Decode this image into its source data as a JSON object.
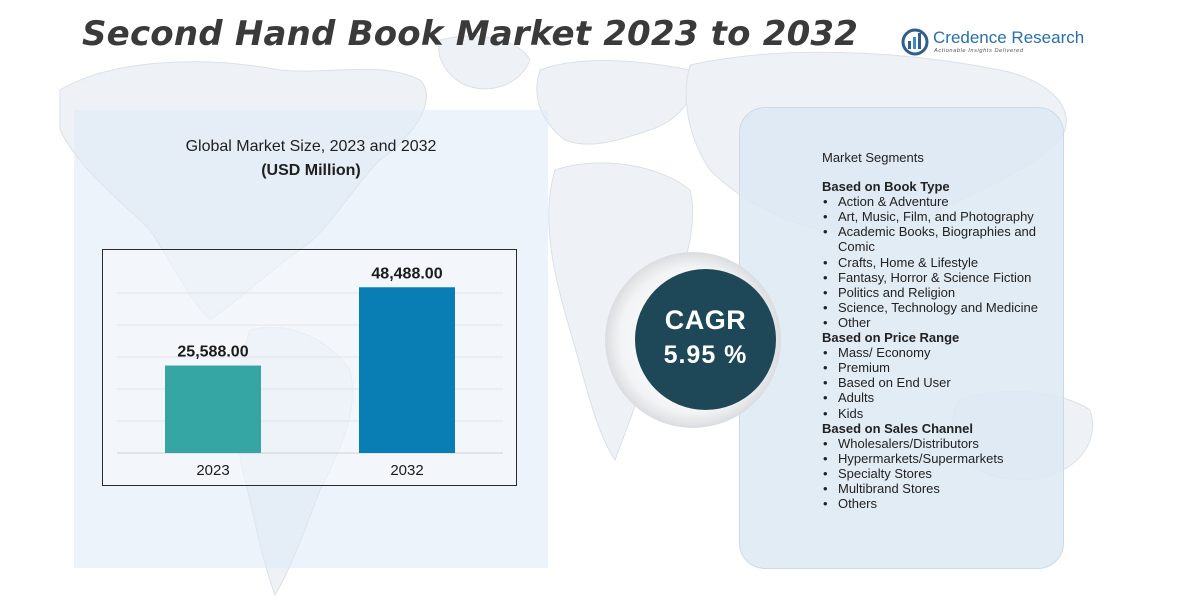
{
  "header": {
    "title": "Second Hand Book Market 2023 to 2032",
    "logo_name": "Credence Research",
    "logo_tagline": "Actionable Insights Delivered"
  },
  "colors": {
    "bar_2023": "#35a6a3",
    "bar_2032": "#087eb4",
    "cagr_circle": "#1e4757",
    "panel": "#deeaf6"
  },
  "chart_data": {
    "type": "bar",
    "title": "Global Market Size, 2023 and 2032",
    "subtitle": "(USD Million)",
    "categories": [
      "2023",
      "2032"
    ],
    "values": [
      25588,
      48488
    ],
    "value_labels": [
      "25,588.00",
      "48,488.00"
    ],
    "grid": true
  },
  "segments": {
    "heading": "Market Segments",
    "groups": [
      {
        "title": "Based on Book Type",
        "items": [
          "Action & Adventure",
          "Art, Music, Film, and Photography",
          "Academic Books, Biographies and Comic",
          "Crafts, Home & Lifestyle",
          "Fantasy, Horror & Science Fiction",
          "Politics and Religion",
          "Science, Technology and Medicine",
          "Other"
        ]
      },
      {
        "title": "Based on Price Range",
        "items": [
          "Mass/ Economy",
          "Premium",
          "Based on End User",
          "Adults",
          "Kids"
        ]
      },
      {
        "title": "Based on Sales Channel",
        "items": [
          "Wholesalers/Distributors",
          "Hypermarkets/Supermarkets",
          "Specialty Stores",
          "Multibrand Stores",
          "Others"
        ]
      }
    ]
  },
  "cagr": {
    "label": "CAGR",
    "value": "5.95 %"
  }
}
